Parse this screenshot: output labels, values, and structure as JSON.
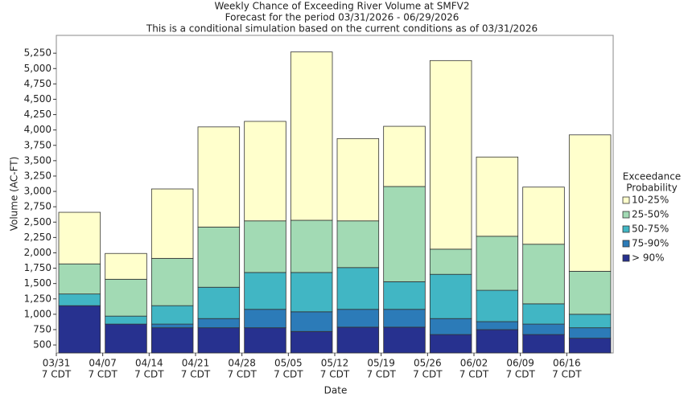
{
  "chart_data": {
    "type": "exceedance-bar",
    "title": "Weekly Chance of Exceeding River Volume at SMFV2",
    "subtitle": [
      "Forecast for the period 03/31/2026 - 06/29/2026",
      "This is a conditional simulation based on the current conditions as of 03/31/2026"
    ],
    "x_label": "Date",
    "y_label": "Volume (AC-FT)",
    "categories": [
      [
        "03/31",
        "7 CDT"
      ],
      [
        "04/07",
        "7 CDT"
      ],
      [
        "04/14",
        "7 CDT"
      ],
      [
        "04/21",
        "7 CDT"
      ],
      [
        "04/28",
        "7 CDT"
      ],
      [
        "05/05",
        "7 CDT"
      ],
      [
        "05/12",
        "7 CDT"
      ],
      [
        "05/19",
        "7 CDT"
      ],
      [
        "05/26",
        "7 CDT"
      ],
      [
        "06/02",
        "7 CDT"
      ],
      [
        "06/09",
        "7 CDT"
      ],
      [
        "06/16",
        "7 CDT"
      ]
    ],
    "legend_title": [
      "Exceedance",
      "Probability"
    ],
    "legend_position": "right",
    "series": [
      {
        "name": "> 90%",
        "color": "#27318f",
        "values": [
          1140,
          840,
          780,
          780,
          780,
          720,
          790,
          790,
          670,
          750,
          670,
          610
        ]
      },
      {
        "name": "75-90%",
        "color": "#2c7bb8",
        "values": [
          1140,
          840,
          840,
          930,
          1080,
          1040,
          1080,
          1080,
          930,
          880,
          840,
          780
        ]
      },
      {
        "name": "50-75%",
        "color": "#41b6c4",
        "values": [
          1330,
          970,
          1140,
          1440,
          1680,
          1680,
          1760,
          1530,
          1650,
          1390,
          1170,
          1000
        ]
      },
      {
        "name": "25-50%",
        "color": "#a2dab4",
        "values": [
          1820,
          1570,
          1910,
          2420,
          2520,
          2530,
          2520,
          3080,
          2060,
          2270,
          2140,
          1700
        ]
      },
      {
        "name": "10-25%",
        "color": "#ffffcc",
        "values": [
          2660,
          1990,
          3040,
          4050,
          4140,
          5270,
          3860,
          4060,
          5130,
          3560,
          3070,
          3920
        ]
      }
    ],
    "ylim": [
      370,
      5540
    ],
    "yticks": [
      500,
      750,
      {
        "value": 1000,
        "label": "1,000"
      },
      {
        "value": 1250,
        "label": "1,250"
      },
      {
        "value": 1500,
        "label": "1,500"
      },
      {
        "value": 1750,
        "label": "1,750"
      },
      {
        "value": 2000,
        "label": "2,000"
      },
      {
        "value": 2250,
        "label": "2,250"
      },
      {
        "value": 2500,
        "label": "2,500"
      },
      {
        "value": 2750,
        "label": "2,750"
      },
      {
        "value": 3000,
        "label": "3,000"
      },
      {
        "value": 3250,
        "label": "3,250"
      },
      {
        "value": 3500,
        "label": "3,500"
      },
      {
        "value": 3750,
        "label": "3,750"
      },
      {
        "value": 4000,
        "label": "4,000"
      },
      {
        "value": 4250,
        "label": "4,250"
      },
      {
        "value": 4500,
        "label": "4,500"
      },
      {
        "value": 4750,
        "label": "4,750"
      },
      {
        "value": 5000,
        "label": "5,000"
      },
      {
        "value": 5250,
        "label": "5,250"
      }
    ],
    "grid": false
  }
}
